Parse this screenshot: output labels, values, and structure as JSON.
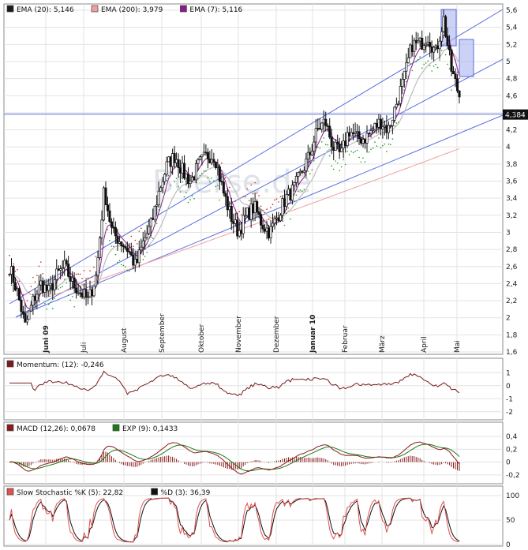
{
  "watermark": "Boerse.de",
  "main": {
    "legend": [
      {
        "label": "EMA (20): 5,146",
        "color": "#1a1a1a"
      },
      {
        "label": "EMA (200): 3,979",
        "color": "#f0a0a0"
      },
      {
        "label": "EMA (7): 5,116",
        "color": "#8b1a8b"
      }
    ],
    "y_ticks": [
      "5,6",
      "5,4",
      "5,2",
      "5",
      "4,8",
      "4,6",
      "4,4",
      "4,2",
      "4",
      "3,8",
      "3,6",
      "3,4",
      "3,2",
      "3",
      "2,8",
      "2,6",
      "2,4",
      "2,2",
      "2",
      "1,8",
      "1,6"
    ],
    "y_tick_values": [
      5.6,
      5.4,
      5.2,
      5.0,
      4.8,
      4.6,
      4.4,
      4.2,
      4.0,
      3.8,
      3.6,
      3.4,
      3.2,
      3.0,
      2.8,
      2.6,
      2.4,
      2.2,
      2.0,
      1.8,
      1.6
    ],
    "price_label": "4,384",
    "price_value": 4.384,
    "months": [
      {
        "label": "Juni 09",
        "bold": true
      },
      {
        "label": "Juli",
        "bold": false
      },
      {
        "label": "August",
        "bold": false
      },
      {
        "label": "September",
        "bold": false
      },
      {
        "label": "Oktober",
        "bold": false
      },
      {
        "label": "November",
        "bold": false
      },
      {
        "label": "Dezember",
        "bold": false
      },
      {
        "label": "Januar 10",
        "bold": true
      },
      {
        "label": "Februar",
        "bold": false
      },
      {
        "label": "März",
        "bold": false
      },
      {
        "label": "April",
        "bold": false
      },
      {
        "label": "Mai",
        "bold": false
      }
    ]
  },
  "momentum": {
    "legend": [
      {
        "label": "Momentum: (12): -0,246",
        "color": "#7a1a1a"
      }
    ],
    "y_ticks": [
      "1",
      "0",
      "-1",
      "-2"
    ],
    "y_tick_values": [
      1,
      0,
      -1,
      -2
    ]
  },
  "macd": {
    "legend": [
      {
        "label": "MACD (12,26): 0,0678",
        "color": "#8b1a1a"
      },
      {
        "label": "EXP (9): 0,1433",
        "color": "#1a7a1a"
      }
    ],
    "y_ticks": [
      "0,4",
      "0,2",
      "0",
      "-0,2"
    ],
    "y_tick_values": [
      0.4,
      0.2,
      0,
      -0.2
    ]
  },
  "stoch": {
    "legend": [
      {
        "label": "Slow Stochastic %K (5): 22,82",
        "color": "#e05050"
      },
      {
        "label": "%D (3): 36,39",
        "color": "#111111"
      }
    ],
    "y_ticks": [
      "100",
      "50",
      "0"
    ],
    "y_tick_values": [
      100,
      50,
      0
    ]
  },
  "chart_data": [
    {
      "type": "candlestick",
      "title": "",
      "ylim": [
        1.6,
        5.6
      ],
      "x_months": [
        "Juni 09",
        "Juli",
        "August",
        "September",
        "Oktober",
        "November",
        "Dezember",
        "Januar 10",
        "Februar",
        "März",
        "April",
        "Mai"
      ],
      "weekly_close_approx": [
        2.6,
        2.3,
        1.9,
        2.2,
        2.4,
        2.3,
        2.5,
        2.6,
        2.4,
        2.3,
        2.2,
        2.5,
        3.5,
        3.0,
        2.9,
        2.8,
        2.6,
        2.9,
        3.1,
        3.5,
        3.8,
        3.9,
        3.7,
        3.6,
        3.8,
        3.9,
        3.9,
        3.5,
        3.2,
        3.0,
        3.2,
        3.3,
        3.1,
        3.0,
        3.2,
        3.4,
        3.5,
        3.7,
        3.9,
        4.2,
        4.3,
        4.0,
        3.9,
        4.2,
        4.1,
        4.1,
        4.2,
        4.3,
        4.2,
        4.5,
        4.8,
        5.2,
        5.2,
        5.3,
        5.1,
        5.5,
        4.9,
        4.6
      ],
      "series": [
        {
          "name": "EMA (20)",
          "last": 5.146
        },
        {
          "name": "EMA (200)",
          "last": 3.979
        },
        {
          "name": "EMA (7)",
          "last": 5.116
        }
      ],
      "horizontal_line": 4.384
    },
    {
      "type": "line",
      "title": "",
      "ylim": [
        -2.5,
        1.5
      ],
      "series": [
        {
          "name": "Momentum",
          "last": -0.246
        }
      ]
    },
    {
      "type": "line",
      "title": "",
      "ylim": [
        -0.3,
        0.5
      ],
      "series": [
        {
          "name": "MACD (12,26)",
          "last": 0.0678
        },
        {
          "name": "EXP (9)",
          "last": 0.1433
        }
      ]
    },
    {
      "type": "line",
      "title": "",
      "ylim": [
        0,
        110
      ],
      "series": [
        {
          "name": "Slow Stochastic %K (5)",
          "last": 22.82
        },
        {
          "name": "%D (3)",
          "last": 36.39
        }
      ]
    }
  ]
}
